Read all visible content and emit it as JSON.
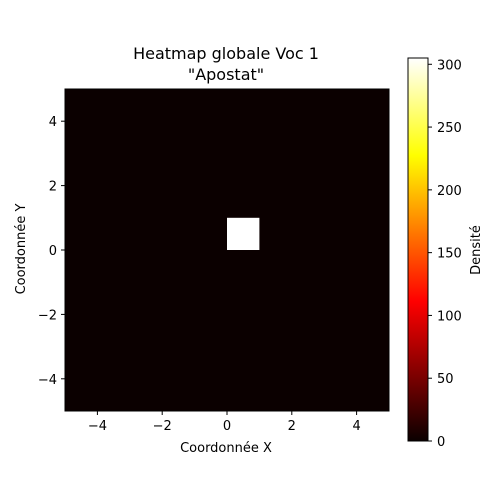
{
  "chart_data": {
    "type": "heatmap",
    "title": "Heatmap globale Voc 1",
    "subtitle": "\"Apostat\"",
    "xlabel": "Coordonnée X",
    "ylabel": "Coordonnée Y",
    "xlim": [
      -5,
      5
    ],
    "ylim": [
      -5,
      5
    ],
    "xticks": [
      -4,
      -2,
      0,
      2,
      4
    ],
    "yticks": [
      -4,
      -2,
      0,
      2,
      4
    ],
    "xtick_labels": [
      "−4",
      "−2",
      "0",
      "2",
      "4"
    ],
    "ytick_labels": [
      "−4",
      "−2",
      "0",
      "2",
      "4"
    ],
    "grid": false,
    "cell_size": 1,
    "background_value": 0,
    "cells": [
      {
        "x": 0,
        "y": 0,
        "value": 305
      }
    ],
    "colorbar": {
      "label": "Densité",
      "colormap": "hot",
      "range": [
        0,
        305
      ],
      "ticks": [
        0,
        50,
        100,
        150,
        200,
        250,
        300
      ],
      "tick_labels": [
        "0",
        "50",
        "100",
        "150",
        "200",
        "250",
        "300"
      ]
    }
  }
}
